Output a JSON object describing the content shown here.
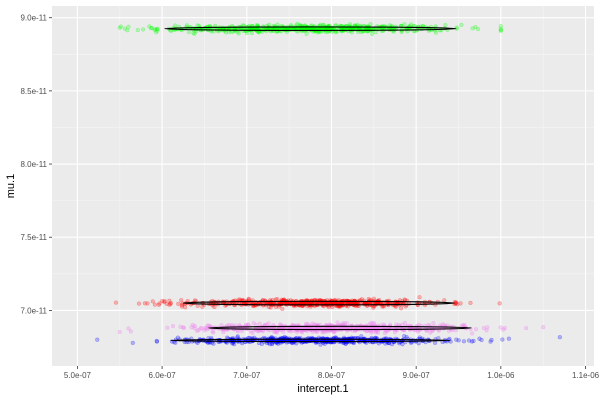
{
  "chart_data": {
    "type": "scatter",
    "title": "",
    "xlabel": "intercept.1",
    "ylabel": "mu.1",
    "xlim": [
      4.7e-07,
      1.11e-06
    ],
    "ylim": [
      6.62e-11,
      9.08e-11
    ],
    "x_ticks": [
      {
        "value": 5e-07,
        "label": "5.0e-07"
      },
      {
        "value": 6e-07,
        "label": "6.0e-07"
      },
      {
        "value": 7e-07,
        "label": "7.0e-07"
      },
      {
        "value": 8e-07,
        "label": "8.0e-07"
      },
      {
        "value": 9e-07,
        "label": "9.0e-07"
      },
      {
        "value": 1e-06,
        "label": "1.0e-06"
      },
      {
        "value": 1.1e-06,
        "label": "1.1e-06"
      }
    ],
    "y_ticks": [
      {
        "value": 7e-11,
        "label": "7.0e-11"
      },
      {
        "value": 7.5e-11,
        "label": "7.5e-11"
      },
      {
        "value": 8e-11,
        "label": "8.0e-11"
      },
      {
        "value": 8.5e-11,
        "label": "8.5e-11"
      },
      {
        "value": 9e-11,
        "label": "9.0e-11"
      }
    ],
    "grid": true,
    "legend": "none",
    "background_color": "#ebebeb",
    "series": [
      {
        "color": "#00ff00",
        "opacity": 0.25,
        "n_points": 600,
        "center": [
          7.7e-07,
          8.925e-11
        ],
        "x_sd": 8.5e-08,
        "y_sd": 1.3e-13,
        "x_range": [
          5.5e-07,
          1e-06
        ],
        "y_range": [
          8.89e-11,
          8.96e-11
        ],
        "ellipse": {
          "center": [
            7.75e-07,
            8.925e-11
          ],
          "x_halfwidth": 1.72e-07,
          "y_halfwidth": 1.2e-13
        }
      },
      {
        "color": "#ff0000",
        "opacity": 0.25,
        "n_points": 600,
        "center": [
          7.8e-07,
          7.05e-11
        ],
        "x_sd": 7.5e-08,
        "y_sd": 1.2e-13,
        "x_range": [
          5.2e-07,
          1.02e-06
        ],
        "y_range": [
          7.01e-11,
          7.09e-11
        ],
        "ellipse": {
          "center": [
            7.85e-07,
            7.05e-11
          ],
          "x_halfwidth": 1.6e-07,
          "y_halfwidth": 1.2e-13
        }
      },
      {
        "color": "#ee82ee",
        "opacity": 0.3,
        "n_points": 600,
        "center": [
          8e-07,
          6.88e-11
        ],
        "x_sd": 8e-08,
        "y_sd": 1.3e-13,
        "x_range": [
          5.5e-07,
          1.05e-06
        ],
        "y_range": [
          6.83e-11,
          6.93e-11
        ],
        "ellipse": {
          "center": [
            8.1e-07,
            6.88e-11
          ],
          "x_halfwidth": 1.55e-07,
          "y_halfwidth": 1.1e-13
        }
      },
      {
        "color": "#0000ff",
        "opacity": 0.25,
        "n_points": 600,
        "center": [
          7.8e-07,
          6.795e-11
        ],
        "x_sd": 8e-08,
        "y_sd": 1e-13,
        "x_range": [
          4.9e-07,
          1.08e-06
        ],
        "y_range": [
          6.74e-11,
          6.84e-11
        ],
        "ellipse": {
          "center": [
            7.75e-07,
            6.795e-11
          ],
          "x_halfwidth": 1.65e-07,
          "y_halfwidth": 8e-14
        }
      }
    ]
  }
}
